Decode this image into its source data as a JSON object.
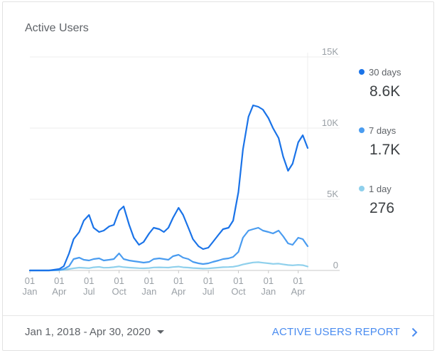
{
  "card": {
    "title": "Active Users",
    "date_range": "Jan 1, 2018 - Apr 30, 2020",
    "report_link": "ACTIVE USERS REPORT",
    "caret_icon": "caret-down-icon",
    "chevron_icon": "chevron-right-icon"
  },
  "legend": [
    {
      "name": "30 days",
      "value": "8.6K",
      "color": "#1a73e8"
    },
    {
      "name": "7 days",
      "value": "1.7K",
      "color": "#4a9cf0"
    },
    {
      "name": "1 day",
      "value": "276",
      "color": "#8fd0ec"
    }
  ],
  "chart_data": {
    "type": "line",
    "title": "",
    "y_ticks": [
      "0",
      "5K",
      "10K",
      "15K"
    ],
    "ylim": [
      0,
      15000
    ],
    "y_axis_position": "right",
    "grid": true,
    "x_tick_labels": [
      {
        "top": "01",
        "bottom": "Jan"
      },
      {
        "top": "01",
        "bottom": "Apr"
      },
      {
        "top": "01",
        "bottom": "Jul"
      },
      {
        "top": "01",
        "bottom": "Oct"
      },
      {
        "top": "01",
        "bottom": "Jan"
      },
      {
        "top": "01",
        "bottom": "Apr"
      },
      {
        "top": "01",
        "bottom": "Jul"
      },
      {
        "top": "01",
        "bottom": "Oct"
      },
      {
        "top": "01",
        "bottom": "Jan"
      },
      {
        "top": "01",
        "bottom": "Apr"
      }
    ],
    "x": [
      "2018-01-01",
      "2018-02-01",
      "2018-03-01",
      "2018-04-01",
      "2018-04-15",
      "2018-05-01",
      "2018-05-15",
      "2018-06-01",
      "2018-06-15",
      "2018-07-01",
      "2018-07-15",
      "2018-08-01",
      "2018-08-15",
      "2018-09-01",
      "2018-09-15",
      "2018-10-01",
      "2018-10-15",
      "2018-11-01",
      "2018-11-15",
      "2018-12-01",
      "2018-12-15",
      "2019-01-01",
      "2019-01-15",
      "2019-02-01",
      "2019-02-15",
      "2019-03-01",
      "2019-03-15",
      "2019-04-01",
      "2019-04-15",
      "2019-05-01",
      "2019-05-15",
      "2019-06-01",
      "2019-06-15",
      "2019-07-01",
      "2019-07-15",
      "2019-08-01",
      "2019-08-15",
      "2019-09-01",
      "2019-09-15",
      "2019-10-01",
      "2019-10-15",
      "2019-11-01",
      "2019-11-15",
      "2019-12-01",
      "2019-12-15",
      "2020-01-01",
      "2020-01-15",
      "2020-02-01",
      "2020-02-15",
      "2020-03-01",
      "2020-03-15",
      "2020-04-01",
      "2020-04-15",
      "2020-04-30"
    ],
    "series": [
      {
        "name": "30 days",
        "color": "#1a73e8",
        "values": [
          0,
          0,
          0,
          100,
          300,
          1200,
          2200,
          2700,
          3500,
          3900,
          3000,
          2700,
          2800,
          3100,
          3200,
          4200,
          4500,
          3200,
          2300,
          1800,
          2000,
          2600,
          3000,
          2900,
          2700,
          3000,
          3700,
          4400,
          3900,
          3000,
          2200,
          1700,
          1500,
          1600,
          2000,
          2500,
          2900,
          3000,
          3500,
          5500,
          8500,
          10800,
          11600,
          11500,
          11300,
          10700,
          10000,
          9300,
          8000,
          7000,
          7500,
          9000,
          9500,
          8600
        ]
      },
      {
        "name": "7 days",
        "color": "#4a9cf0",
        "values": [
          0,
          0,
          0,
          30,
          100,
          300,
          800,
          900,
          750,
          700,
          800,
          850,
          700,
          750,
          800,
          1200,
          800,
          700,
          650,
          600,
          550,
          600,
          800,
          850,
          800,
          750,
          1000,
          1100,
          900,
          800,
          600,
          500,
          450,
          500,
          600,
          700,
          800,
          850,
          950,
          1300,
          2300,
          2800,
          2900,
          3000,
          2800,
          2700,
          2600,
          2800,
          2400,
          1900,
          1800,
          2300,
          2200,
          1700
        ]
      },
      {
        "name": "1 day",
        "color": "#8fd0ec",
        "values": [
          0,
          0,
          0,
          10,
          40,
          100,
          150,
          200,
          180,
          160,
          220,
          250,
          190,
          200,
          230,
          280,
          230,
          200,
          180,
          160,
          150,
          170,
          210,
          220,
          210,
          200,
          240,
          270,
          220,
          200,
          170,
          150,
          130,
          140,
          170,
          200,
          230,
          240,
          260,
          330,
          420,
          500,
          560,
          580,
          540,
          500,
          460,
          480,
          430,
          380,
          360,
          390,
          370,
          276
        ]
      }
    ]
  }
}
